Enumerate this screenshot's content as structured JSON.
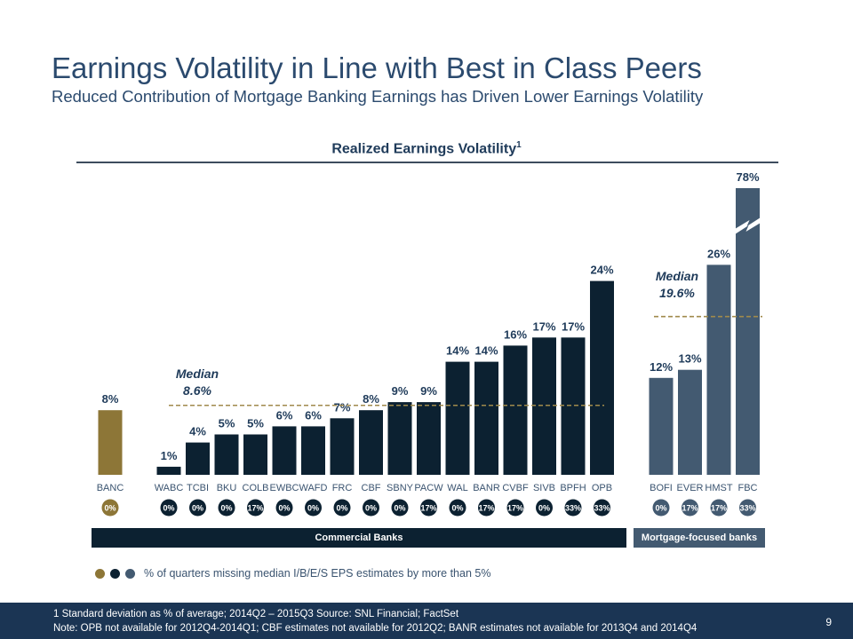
{
  "header": {
    "title": "Earnings Volatility in Line with Best in Class Peers",
    "subtitle": "Reduced Contribution of Mortgage Banking Earnings has Driven Lower Earnings Volatility"
  },
  "colors": {
    "banc": "#8d7637",
    "commercial": "#0c2131",
    "mortgage": "#435a71",
    "median_line": "#a08a4c",
    "title_text": "#2b4a6e"
  },
  "chart_data": {
    "type": "bar",
    "title": "Realized Earnings Volatility",
    "title_superscript": "1",
    "xlabel": "",
    "ylabel": "",
    "ylim": [
      0,
      30
    ],
    "axis_break": {
      "bar": "FBC",
      "note": "bar truncated with break symbol"
    },
    "groups": [
      {
        "name": "BANC",
        "categories": [
          "BANC"
        ]
      },
      {
        "name": "Commercial Banks",
        "categories": [
          "WABC",
          "TCBI",
          "BKU",
          "COLB",
          "EWBC",
          "WAFD",
          "FRC",
          "CBF",
          "SBNY",
          "PACW",
          "WAL",
          "BANR",
          "CVBF",
          "SIVB",
          "BPFH",
          "OPB"
        ]
      },
      {
        "name": "Mortgage-focused banks",
        "categories": [
          "BOFI",
          "EVER",
          "HMST",
          "FBC"
        ]
      }
    ],
    "bars": [
      {
        "category": "BANC",
        "value": 8,
        "label": "8%",
        "missed": "0%",
        "group": "banc"
      },
      {
        "category": "WABC",
        "value": 1,
        "label": "1%",
        "missed": "0%",
        "group": "commercial"
      },
      {
        "category": "TCBI",
        "value": 4,
        "label": "4%",
        "missed": "0%",
        "group": "commercial"
      },
      {
        "category": "BKU",
        "value": 5,
        "label": "5%",
        "missed": "0%",
        "group": "commercial"
      },
      {
        "category": "COLB",
        "value": 5,
        "label": "5%",
        "missed": "17%",
        "group": "commercial"
      },
      {
        "category": "EWBC",
        "value": 6,
        "label": "6%",
        "missed": "0%",
        "group": "commercial"
      },
      {
        "category": "WAFD",
        "value": 6,
        "label": "6%",
        "missed": "0%",
        "group": "commercial"
      },
      {
        "category": "FRC",
        "value": 7,
        "label": "7%",
        "missed": "0%",
        "group": "commercial"
      },
      {
        "category": "CBF",
        "value": 8,
        "label": "8%",
        "missed": "0%",
        "group": "commercial"
      },
      {
        "category": "SBNY",
        "value": 9,
        "label": "9%",
        "missed": "0%",
        "group": "commercial"
      },
      {
        "category": "PACW",
        "value": 9,
        "label": "9%",
        "missed": "17%",
        "group": "commercial"
      },
      {
        "category": "WAL",
        "value": 14,
        "label": "14%",
        "missed": "0%",
        "group": "commercial"
      },
      {
        "category": "BANR",
        "value": 14,
        "label": "14%",
        "missed": "17%",
        "group": "commercial"
      },
      {
        "category": "CVBF",
        "value": 16,
        "label": "16%",
        "missed": "17%",
        "group": "commercial"
      },
      {
        "category": "SIVB",
        "value": 17,
        "label": "17%",
        "missed": "0%",
        "group": "commercial"
      },
      {
        "category": "BPFH",
        "value": 17,
        "label": "17%",
        "missed": "33%",
        "group": "commercial"
      },
      {
        "category": "OPB",
        "value": 24,
        "label": "24%",
        "missed": "33%",
        "group": "commercial"
      },
      {
        "category": "BOFI",
        "value": 12,
        "label": "12%",
        "missed": "0%",
        "group": "mortgage"
      },
      {
        "category": "EVER",
        "value": 13,
        "label": "13%",
        "missed": "17%",
        "group": "mortgage"
      },
      {
        "category": "HMST",
        "value": 26,
        "label": "26%",
        "missed": "17%",
        "group": "mortgage"
      },
      {
        "category": "FBC",
        "value": 78,
        "label": "78%",
        "missed": "33%",
        "group": "mortgage"
      }
    ],
    "medians": [
      {
        "group": "commercial",
        "label_line1": "Median",
        "label_line2": "8.6%",
        "value": 8.6
      },
      {
        "group": "mortgage",
        "label_line1": "Median",
        "label_line2": "19.6%",
        "value": 19.6
      }
    ]
  },
  "bands": {
    "commercial": "Commercial Banks",
    "mortgage": "Mortgage-focused banks"
  },
  "legend": {
    "text": "% of quarters missing median I/B/E/S EPS estimates by more than 5%"
  },
  "footer": {
    "footnote_1": "1   Standard deviation as % of average; 2014Q2 – 2015Q3     Source: SNL Financial; FactSet",
    "note": "Note: OPB not available for 2012Q4-2014Q1; CBF estimates not available for 2012Q2; BANR estimates not available for 2013Q4 and 2014Q4",
    "page_number": "9"
  }
}
